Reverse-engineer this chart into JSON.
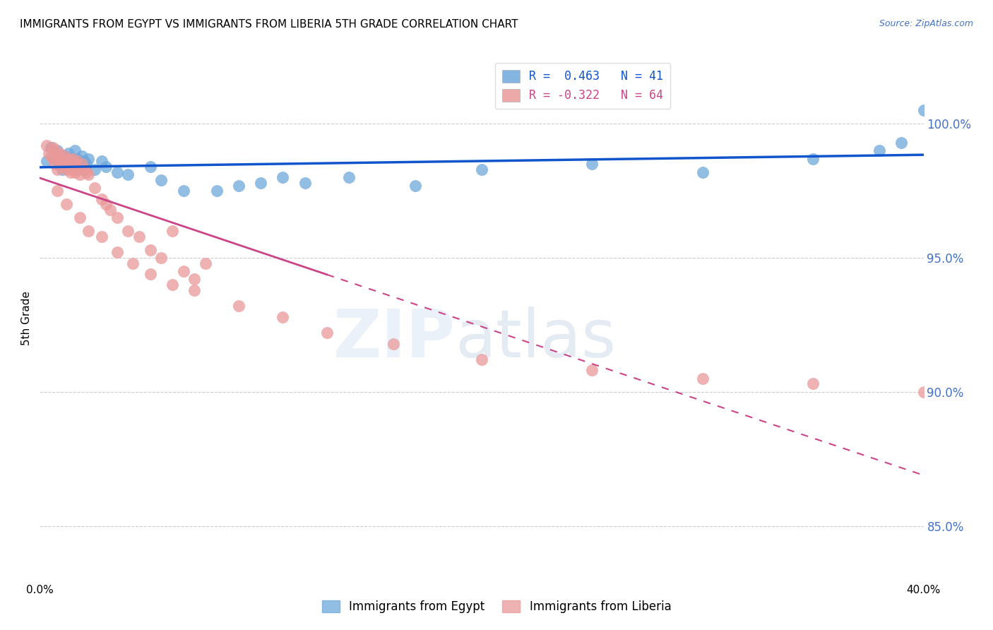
{
  "title": "IMMIGRANTS FROM EGYPT VS IMMIGRANTS FROM LIBERIA 5TH GRADE CORRELATION CHART",
  "source": "Source: ZipAtlas.com",
  "ylabel": "5th Grade",
  "ytick_labels": [
    "100.0%",
    "95.0%",
    "90.0%",
    "85.0%"
  ],
  "ytick_values": [
    1.0,
    0.95,
    0.9,
    0.85
  ],
  "xlim": [
    0.0,
    0.4
  ],
  "ylim": [
    0.83,
    1.025
  ],
  "legend_egypt": "R =  0.463   N = 41",
  "legend_liberia": "R = -0.322   N = 64",
  "egypt_color": "#6fa8dc",
  "liberia_color": "#ea9999",
  "egypt_line_color": "#1155cc",
  "liberia_line_color": "#cc4488",
  "egypt_points_x": [
    0.003,
    0.005,
    0.006,
    0.007,
    0.008,
    0.009,
    0.01,
    0.011,
    0.012,
    0.013,
    0.014,
    0.015,
    0.016,
    0.017,
    0.018,
    0.019,
    0.02,
    0.021,
    0.022,
    0.025,
    0.028,
    0.03,
    0.035,
    0.04,
    0.05,
    0.055,
    0.065,
    0.08,
    0.09,
    0.1,
    0.11,
    0.12,
    0.14,
    0.17,
    0.2,
    0.25,
    0.3,
    0.35,
    0.38,
    0.39,
    0.4
  ],
  "egypt_points_y": [
    0.986,
    0.991,
    0.988,
    0.987,
    0.99,
    0.985,
    0.983,
    0.988,
    0.987,
    0.989,
    0.986,
    0.985,
    0.99,
    0.987,
    0.985,
    0.988,
    0.986,
    0.985,
    0.987,
    0.983,
    0.986,
    0.984,
    0.982,
    0.981,
    0.984,
    0.979,
    0.975,
    0.975,
    0.977,
    0.978,
    0.98,
    0.978,
    0.98,
    0.977,
    0.983,
    0.985,
    0.982,
    0.987,
    0.99,
    0.993,
    1.005
  ],
  "liberia_points_x": [
    0.003,
    0.004,
    0.005,
    0.006,
    0.006,
    0.007,
    0.007,
    0.008,
    0.008,
    0.009,
    0.009,
    0.01,
    0.01,
    0.011,
    0.011,
    0.012,
    0.012,
    0.013,
    0.013,
    0.014,
    0.014,
    0.015,
    0.015,
    0.016,
    0.016,
    0.017,
    0.017,
    0.018,
    0.019,
    0.02,
    0.021,
    0.022,
    0.025,
    0.028,
    0.03,
    0.032,
    0.035,
    0.04,
    0.045,
    0.05,
    0.055,
    0.06,
    0.065,
    0.07,
    0.075,
    0.008,
    0.012,
    0.018,
    0.022,
    0.028,
    0.035,
    0.042,
    0.05,
    0.06,
    0.07,
    0.09,
    0.11,
    0.13,
    0.16,
    0.2,
    0.25,
    0.3,
    0.35,
    0.4
  ],
  "liberia_points_y": [
    0.992,
    0.989,
    0.988,
    0.987,
    0.991,
    0.985,
    0.99,
    0.983,
    0.988,
    0.986,
    0.989,
    0.984,
    0.987,
    0.985,
    0.988,
    0.983,
    0.986,
    0.984,
    0.987,
    0.982,
    0.985,
    0.983,
    0.987,
    0.982,
    0.985,
    0.983,
    0.986,
    0.981,
    0.985,
    0.983,
    0.982,
    0.981,
    0.976,
    0.972,
    0.97,
    0.968,
    0.965,
    0.96,
    0.958,
    0.953,
    0.95,
    0.96,
    0.945,
    0.942,
    0.948,
    0.975,
    0.97,
    0.965,
    0.96,
    0.958,
    0.952,
    0.948,
    0.944,
    0.94,
    0.938,
    0.932,
    0.928,
    0.922,
    0.918,
    0.912,
    0.908,
    0.905,
    0.903,
    0.9
  ]
}
